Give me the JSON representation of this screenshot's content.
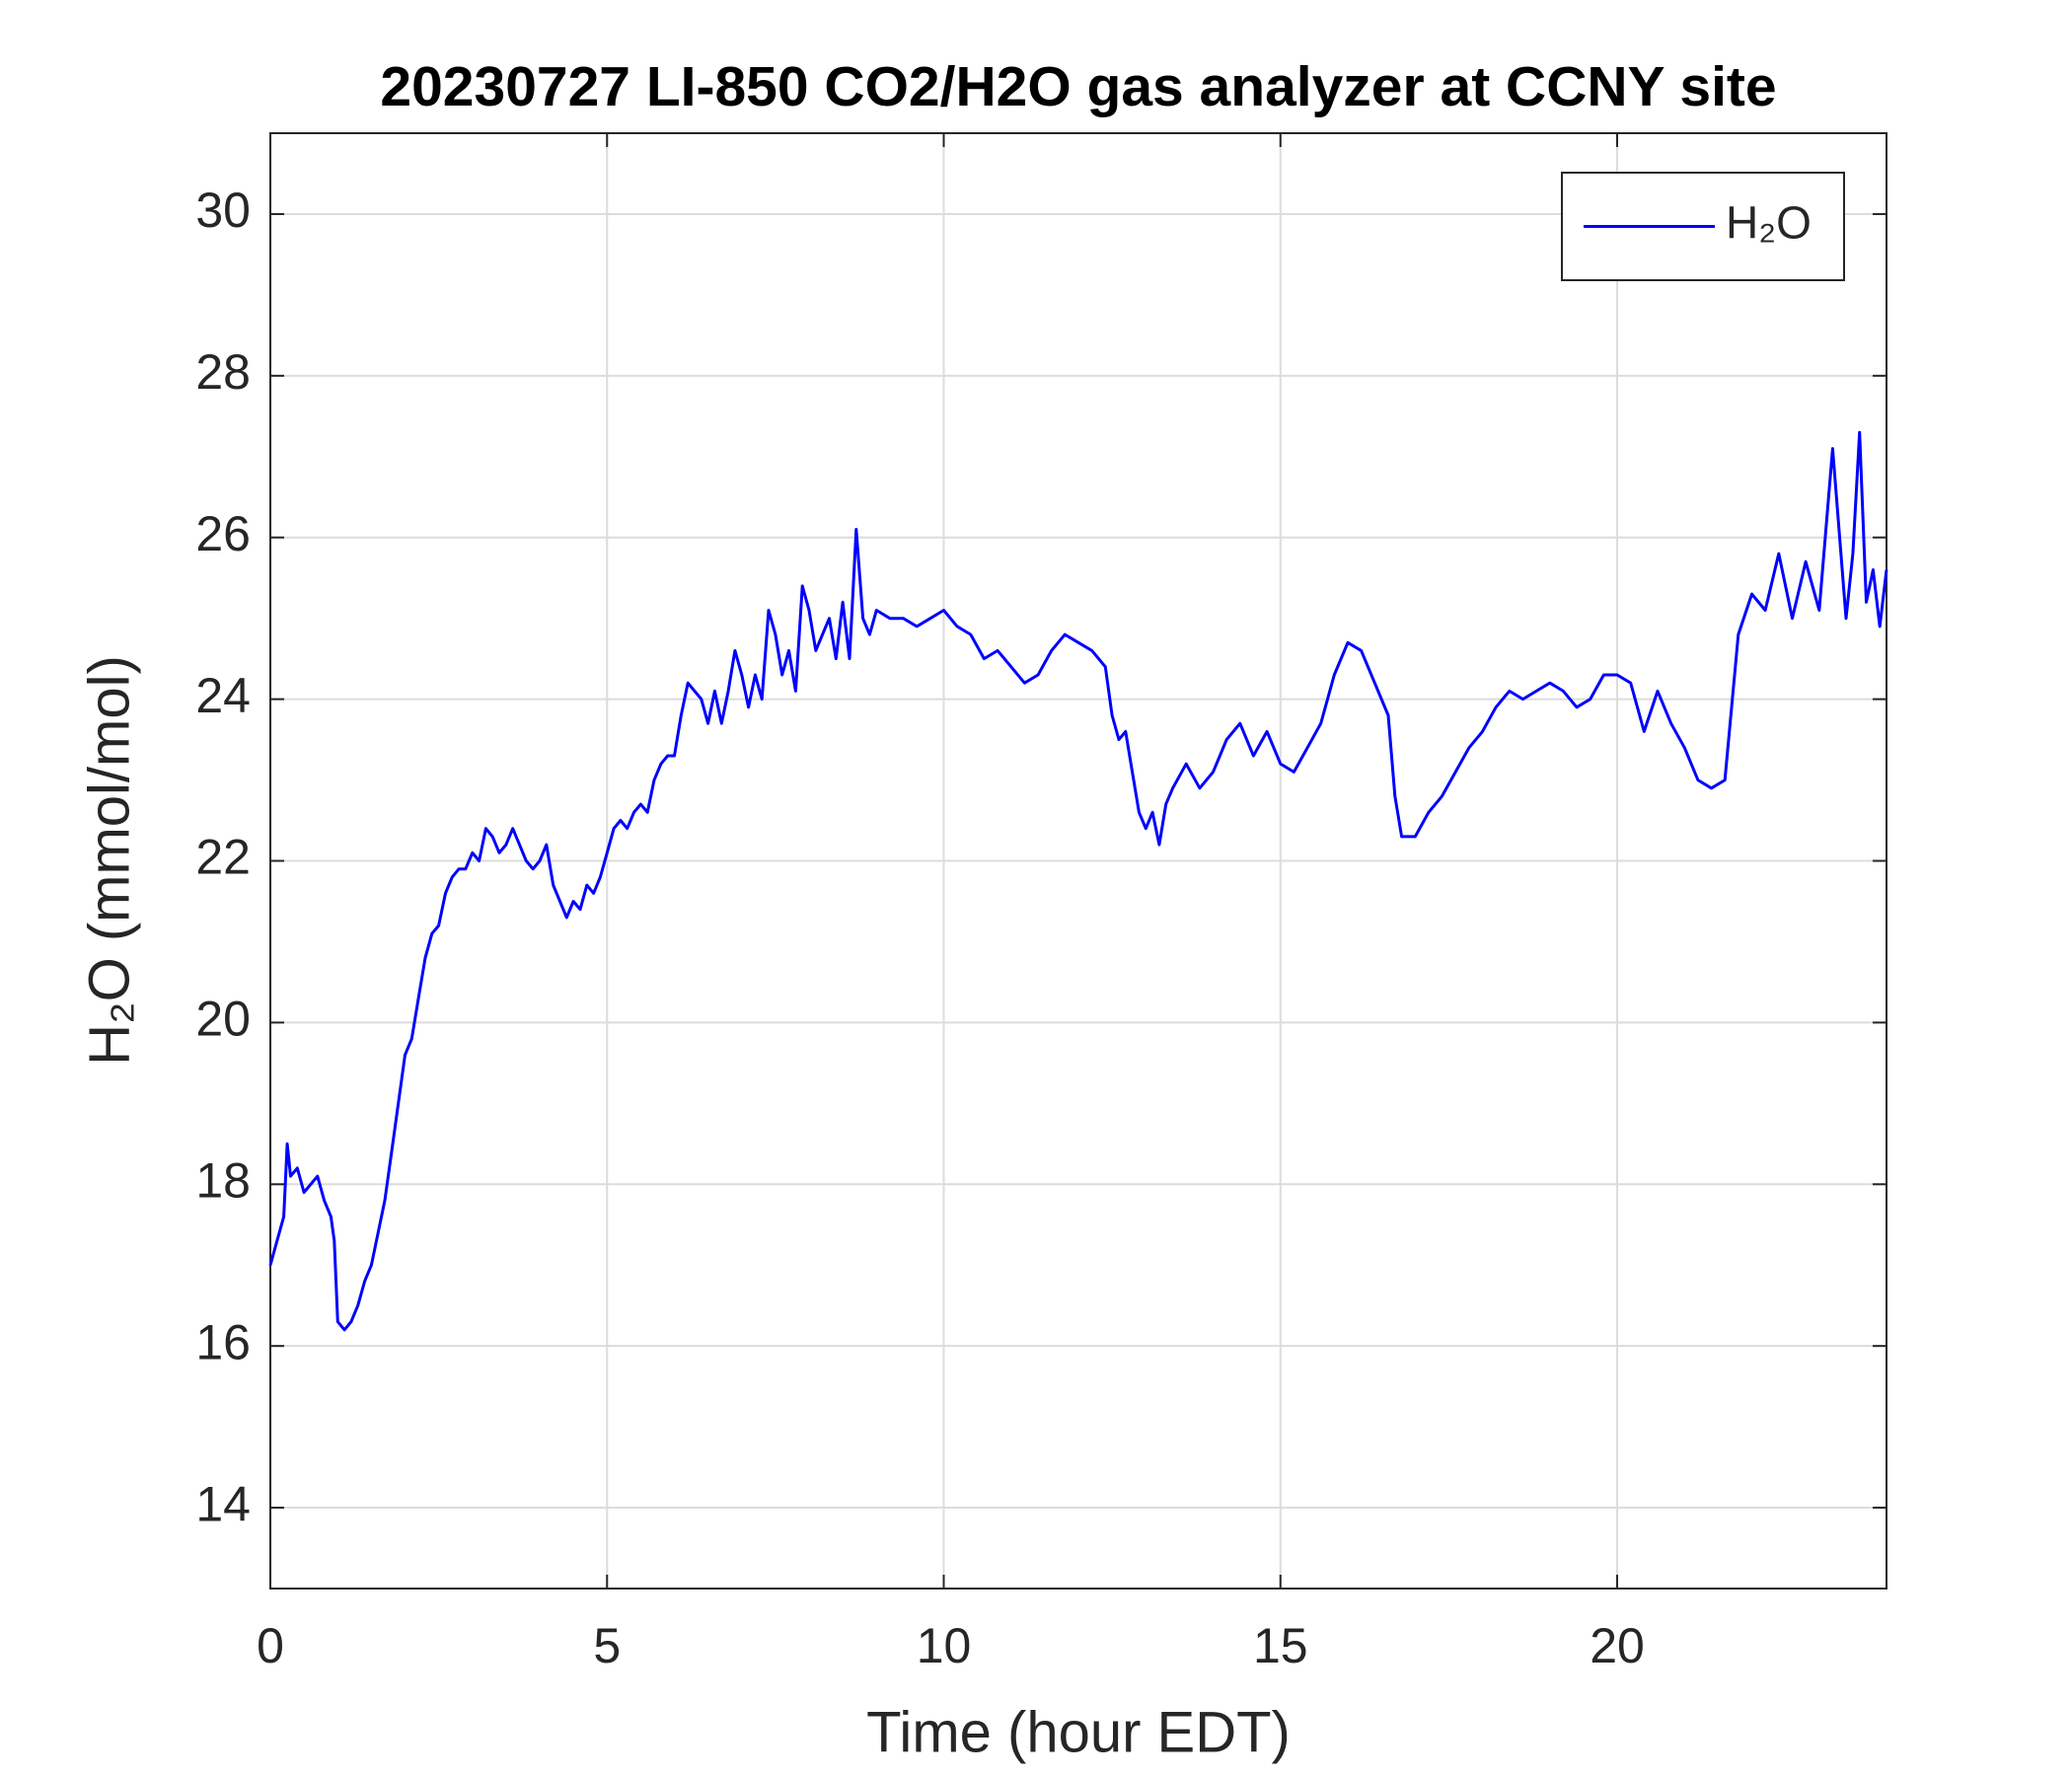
{
  "chart_data": {
    "type": "line",
    "title": "20230727 LI-850 CO2/H2O gas analyzer at CCNY site",
    "xlabel": "Time (hour EDT)",
    "ylabel": "H₂O (mmol/mol)",
    "xlim": [
      0,
      24
    ],
    "ylim": [
      13,
      31
    ],
    "xticks": [
      0,
      5,
      10,
      15,
      20
    ],
    "yticks": [
      14,
      16,
      18,
      20,
      22,
      24,
      26,
      28,
      30
    ],
    "grid": true,
    "legend": "upper-right",
    "x": [
      0,
      0.1,
      0.2,
      0.25,
      0.3,
      0.4,
      0.5,
      0.6,
      0.7,
      0.8,
      0.9,
      0.95,
      1.0,
      1.1,
      1.2,
      1.3,
      1.4,
      1.5,
      1.6,
      1.7,
      1.8,
      1.9,
      2.0,
      2.1,
      2.2,
      2.3,
      2.4,
      2.5,
      2.6,
      2.7,
      2.8,
      2.9,
      3.0,
      3.1,
      3.2,
      3.3,
      3.4,
      3.5,
      3.6,
      3.7,
      3.8,
      3.9,
      4.0,
      4.1,
      4.2,
      4.3,
      4.4,
      4.5,
      4.6,
      4.7,
      4.8,
      4.9,
      5.0,
      5.1,
      5.2,
      5.3,
      5.4,
      5.5,
      5.6,
      5.7,
      5.8,
      5.9,
      6.0,
      6.1,
      6.2,
      6.3,
      6.4,
      6.5,
      6.6,
      6.7,
      6.8,
      6.9,
      7.0,
      7.1,
      7.2,
      7.3,
      7.4,
      7.5,
      7.6,
      7.7,
      7.8,
      7.9,
      8.0,
      8.1,
      8.2,
      8.3,
      8.4,
      8.5,
      8.6,
      8.7,
      8.8,
      8.9,
      9.0,
      9.2,
      9.4,
      9.6,
      9.8,
      10.0,
      10.2,
      10.4,
      10.6,
      10.8,
      11.0,
      11.2,
      11.4,
      11.6,
      11.8,
      12.0,
      12.2,
      12.4,
      12.5,
      12.6,
      12.7,
      12.8,
      12.9,
      13.0,
      13.1,
      13.2,
      13.3,
      13.4,
      13.6,
      13.8,
      14.0,
      14.2,
      14.4,
      14.6,
      14.8,
      15.0,
      15.2,
      15.4,
      15.6,
      15.8,
      16.0,
      16.2,
      16.4,
      16.6,
      16.7,
      16.8,
      17.0,
      17.2,
      17.4,
      17.6,
      17.8,
      18.0,
      18.2,
      18.4,
      18.6,
      18.8,
      19.0,
      19.2,
      19.4,
      19.6,
      19.8,
      20.0,
      20.2,
      20.4,
      20.6,
      20.8,
      21.0,
      21.2,
      21.4,
      21.6,
      21.8,
      22.0,
      22.2,
      22.4,
      22.6,
      22.8,
      23.0,
      23.2,
      23.4,
      23.5,
      23.6,
      23.7,
      23.8,
      23.9,
      24.0
    ],
    "series": [
      {
        "name": "H₂O",
        "color": "#0000ff",
        "values": [
          17.0,
          17.3,
          17.6,
          18.5,
          18.1,
          18.2,
          17.9,
          18.0,
          18.1,
          17.8,
          17.6,
          17.3,
          16.3,
          16.2,
          16.3,
          16.5,
          16.8,
          17.0,
          17.4,
          17.8,
          18.4,
          19.0,
          19.6,
          19.8,
          20.3,
          20.8,
          21.1,
          21.2,
          21.6,
          21.8,
          21.9,
          21.9,
          22.1,
          22.0,
          22.4,
          22.3,
          22.1,
          22.2,
          22.4,
          22.2,
          22.0,
          21.9,
          22.0,
          22.2,
          21.7,
          21.5,
          21.3,
          21.5,
          21.4,
          21.7,
          21.6,
          21.8,
          22.1,
          22.4,
          22.5,
          22.4,
          22.6,
          22.7,
          22.6,
          23.0,
          23.2,
          23.3,
          23.3,
          23.8,
          24.2,
          24.1,
          24.0,
          23.7,
          24.1,
          23.7,
          24.1,
          24.6,
          24.3,
          23.9,
          24.3,
          24.0,
          25.1,
          24.8,
          24.3,
          24.6,
          24.1,
          25.4,
          25.1,
          24.6,
          24.8,
          25.0,
          24.5,
          25.2,
          24.5,
          26.1,
          25.0,
          24.8,
          25.1,
          25.0,
          25.0,
          24.9,
          25.0,
          25.1,
          24.9,
          24.8,
          24.5,
          24.6,
          24.4,
          24.2,
          24.3,
          24.6,
          24.8,
          24.7,
          24.6,
          24.4,
          23.8,
          23.5,
          23.6,
          23.1,
          22.6,
          22.4,
          22.6,
          22.2,
          22.7,
          22.9,
          23.2,
          22.9,
          23.1,
          23.5,
          23.7,
          23.3,
          23.6,
          23.2,
          23.1,
          23.4,
          23.7,
          24.3,
          24.7,
          24.6,
          24.2,
          23.8,
          22.8,
          22.3,
          22.3,
          22.6,
          22.8,
          23.1,
          23.4,
          23.6,
          23.9,
          24.1,
          24.0,
          24.1,
          24.2,
          24.1,
          23.9,
          24.0,
          24.3,
          24.3,
          24.2,
          23.6,
          24.1,
          23.7,
          23.4,
          23.0,
          22.9,
          23.0,
          24.8,
          25.3,
          25.1,
          25.8,
          25.0,
          25.7,
          25.1,
          27.1,
          25.0,
          25.8,
          27.3,
          25.2,
          25.6,
          24.9,
          25.6
        ]
      }
    ]
  }
}
